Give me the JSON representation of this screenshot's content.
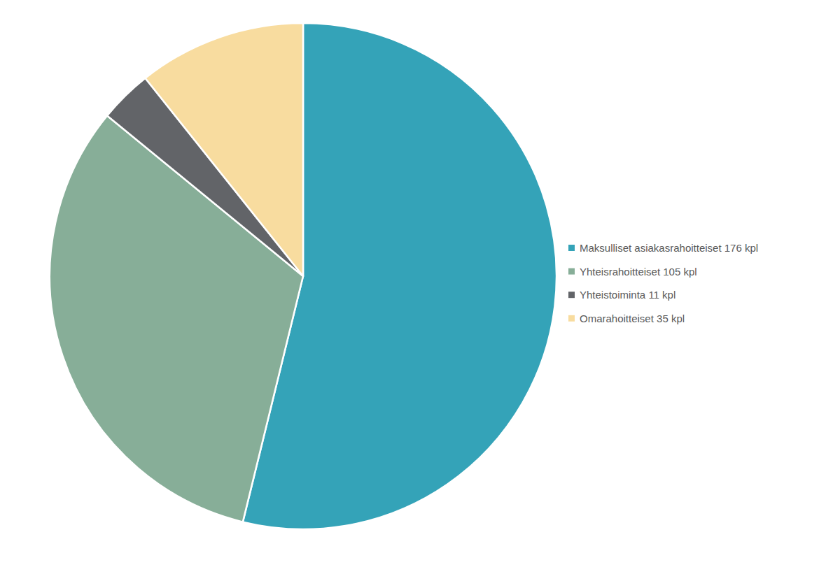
{
  "chart_data": {
    "type": "pie",
    "categories": [
      "Maksulliset asiakasrahoitteiset 176 kpl",
      "Yhteisrahoitteiset 105 kpl",
      "Yhteistoiminta 11 kpl",
      "Omarahoitteiset 35 kpl"
    ],
    "values": [
      176,
      105,
      11,
      35
    ],
    "colors": [
      "#34a3b8",
      "#87ae98",
      "#626468",
      "#f8dc9f"
    ],
    "legend": "right"
  }
}
